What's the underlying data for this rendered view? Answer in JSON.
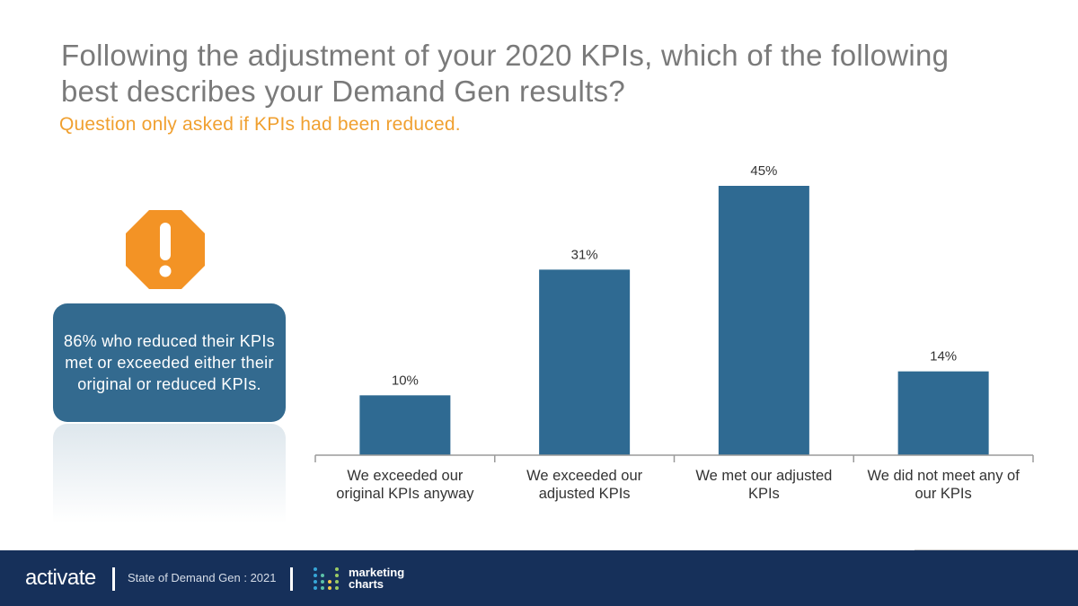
{
  "header": {
    "title": "Following the adjustment of your 2020 KPIs, which of the following best describes your Demand Gen results?",
    "subtitle": "Question only asked if KPIs had been reduced."
  },
  "callout": {
    "text": "86% who reduced their KPIs met or exceeded either their original or reduced KPIs.",
    "icon": "warning-octagon-icon"
  },
  "footer": {
    "brand": "activate",
    "report": "State of Demand Gen : 2021",
    "partner_line1": "marketing",
    "partner_line2": "charts"
  },
  "colors": {
    "bar": "#2f6a92",
    "title": "#7a7a7a",
    "subtitle": "#f0a030",
    "callout": "#336a8f",
    "warning": "#f39325",
    "footer": "#16305a"
  },
  "chart_data": {
    "type": "bar",
    "categories": [
      [
        "We exceeded our",
        "original KPIs anyway"
      ],
      [
        "We exceeded our",
        "adjusted KPIs"
      ],
      [
        "We met our adjusted",
        "KPIs"
      ],
      [
        "We did not meet any of",
        "our KPIs"
      ]
    ],
    "values": [
      10,
      31,
      45,
      14
    ],
    "data_labels": [
      "10%",
      "31%",
      "45%",
      "14%"
    ],
    "unit": "%",
    "ylim": [
      0,
      45
    ],
    "title": "",
    "xlabel": "",
    "ylabel": "",
    "grid": false,
    "legend": "none"
  }
}
